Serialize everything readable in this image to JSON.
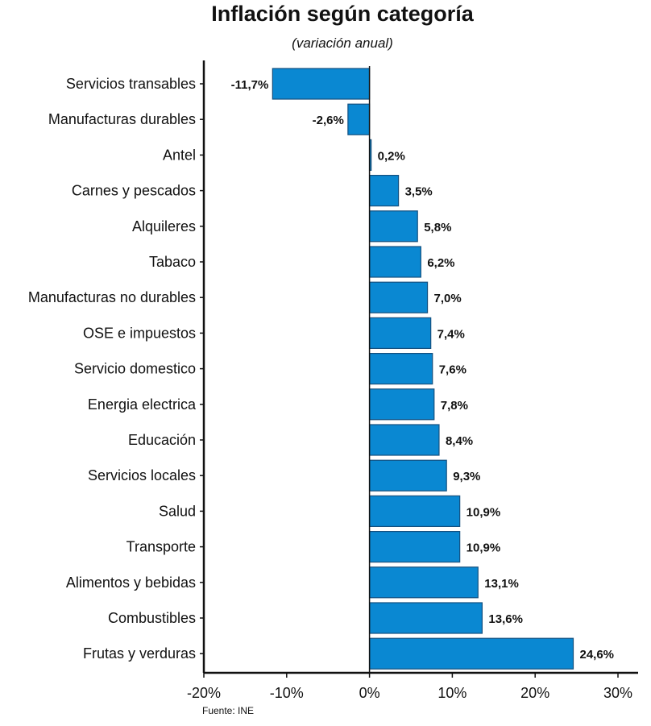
{
  "chart_data": {
    "type": "bar",
    "orientation": "horizontal",
    "title": "Inflación según categoría",
    "subtitle": "(variación anual)",
    "source": "Fuente: INE",
    "xlim": [
      -20,
      30
    ],
    "xticks": [
      -20,
      -10,
      0,
      10,
      20,
      30
    ],
    "xtick_labels": [
      "-20%",
      "-10%",
      "0%",
      "10%",
      "20%",
      "30%"
    ],
    "categories": [
      "Servicios transables",
      "Manufacturas durables",
      "Antel",
      "Carnes y pescados",
      "Alquileres",
      "Tabaco",
      "Manufacturas no durables",
      "OSE e impuestos",
      "Servicio domestico",
      "Energia electrica",
      "Educación",
      "Servicios locales",
      "Salud",
      "Transporte",
      "Alimentos y bebidas",
      "Combustibles",
      "Frutas y verduras"
    ],
    "values": [
      -11.7,
      -2.6,
      0.2,
      3.5,
      5.8,
      6.2,
      7.0,
      7.4,
      7.6,
      7.8,
      8.4,
      9.3,
      10.9,
      10.9,
      13.1,
      13.6,
      24.6
    ],
    "value_labels": [
      "-11,7%",
      "-2,6%",
      "0,2%",
      "3,5%",
      "5,8%",
      "6,2%",
      "7,0%",
      "7,4%",
      "7,6%",
      "7,8%",
      "8,4%",
      "9,3%",
      "10,9%",
      "10,9%",
      "13,1%",
      "13,6%",
      "24,6%"
    ],
    "bar_color": "#0a88d2",
    "bar_edge_color": "#14507f"
  }
}
